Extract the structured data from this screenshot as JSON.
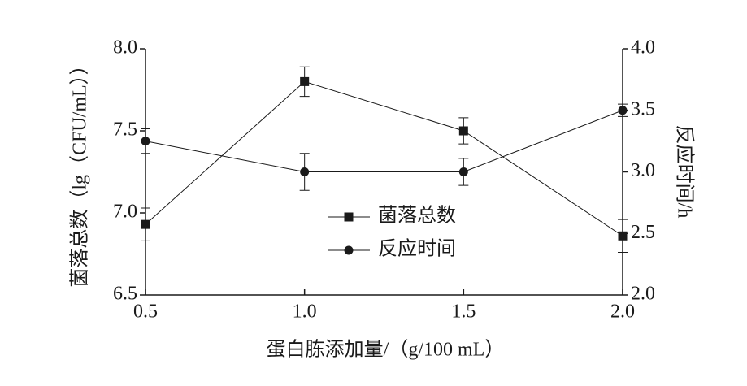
{
  "chart_data": {
    "type": "line",
    "x_label": "蛋白胨添加量/（g/100 mL）",
    "y_label": "菌落总数（lg（CFU/mL））",
    "y2_label": "反应时间/h",
    "x": [
      0.5,
      1.0,
      1.5,
      2.0
    ],
    "xlim": [
      0.5,
      2.0
    ],
    "xticks": [
      0.5,
      {
        "value": 1,
        "label": "1.0"
      },
      1.5,
      {
        "value": 2,
        "label": "2.0"
      }
    ],
    "ylim": [
      6.5,
      8.0
    ],
    "yticks": [
      6.5,
      {
        "value": 7,
        "label": "7.0"
      },
      7.5,
      {
        "value": 8,
        "label": "8.0"
      }
    ],
    "y2lim": [
      2.0,
      4.0
    ],
    "y2ticks": [
      {
        "value": 2,
        "label": "2.0"
      },
      2.5,
      {
        "value": 3,
        "label": "3.0"
      },
      3.5,
      {
        "value": 4,
        "label": "4.0"
      }
    ],
    "series": [
      {
        "name": "菌落总数",
        "color": "#1a1a1a",
        "marker": "square",
        "values": [
          6.93,
          7.8,
          7.5,
          6.86
        ],
        "errors": [
          0.1,
          0.09,
          0.08,
          0.1
        ]
      },
      {
        "name": "反应时间",
        "color": "#1a1a1a",
        "marker": "circle",
        "axis": "y2",
        "values": [
          3.25,
          3.0,
          3.0,
          3.5
        ],
        "errors": [
          0.1,
          0.15,
          0.11,
          0.05
        ]
      }
    ]
  }
}
